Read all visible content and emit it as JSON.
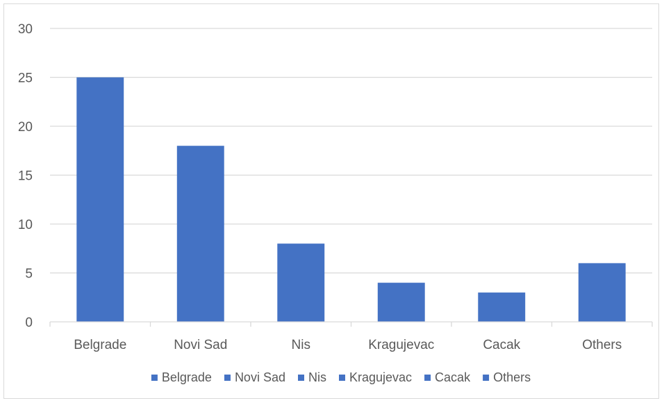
{
  "chart_data": {
    "type": "bar",
    "title": "",
    "xlabel": "",
    "ylabel": "",
    "categories": [
      "Belgrade",
      "Novi Sad",
      "Nis",
      "Kragujevac",
      "Cacak",
      "Others"
    ],
    "values": [
      25,
      18,
      8,
      4,
      3,
      6
    ],
    "ylim": [
      0,
      30
    ],
    "yticks": [
      0,
      5,
      10,
      15,
      20,
      25,
      30
    ],
    "grid": true,
    "legend_position": "bottom",
    "legend": [
      "Belgrade",
      "Novi Sad",
      "Nis",
      "Kragujevac",
      "Cacak",
      "Others"
    ],
    "colors": {
      "bar": "#4472c4",
      "grid": "#d9d9d9",
      "axis": "#d9d9d9",
      "text": "#595959"
    }
  }
}
